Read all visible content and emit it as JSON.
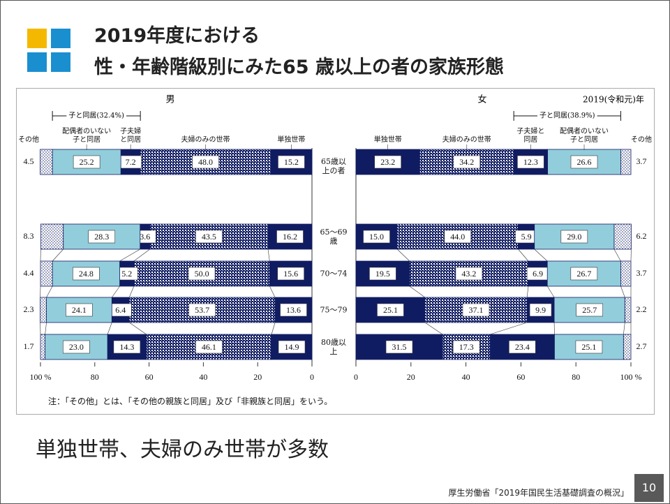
{
  "header": {
    "title_lines": [
      "2019年度における",
      "性・年齢階級別にみた65 歳以上の者の家族形態"
    ]
  },
  "chart_data": {
    "type": "bar",
    "orientation": "horizontal",
    "stacked": true,
    "year_label": "2019(令和元)年",
    "categories": [
      "65歳以上の者",
      "65〜69歳",
      "70〜74",
      "75〜79",
      "80歳以上"
    ],
    "note": "注：「その他」とは、「その他の親族と同居」及び「非親族と同居」をいう。",
    "panels": [
      {
        "title": "男",
        "xlim": [
          100,
          0
        ],
        "xticks": [
          {
            "value": 100,
            "label": "100 %"
          },
          80,
          60,
          40,
          20,
          0
        ],
        "group_annotation": {
          "text": "子と同居(32.4%)",
          "series": [
            2,
            3
          ]
        },
        "series": [
          {
            "name": "単独世帯",
            "color": "#101c62",
            "values": [
              15.2,
              16.2,
              15.6,
              13.6,
              14.9
            ],
            "value_labels": [
              "15.2",
              "16.2",
              "15.6",
              "13.6",
              "14.9"
            ]
          },
          {
            "name": "夫婦のみの世帯",
            "color": "#101c62",
            "pattern": "checker",
            "values": [
              48.0,
              43.5,
              50.0,
              53.7,
              46.1
            ],
            "value_labels": [
              "48.0",
              "43.5",
              "50.0",
              "53.7",
              "46.1"
            ]
          },
          {
            "name": "子夫婦と同居",
            "color": "#101c62",
            "values": [
              7.2,
              3.6,
              5.2,
              6.4,
              14.3
            ],
            "value_labels": [
              "7.2",
              "3.6",
              "5.2",
              "6.4",
              "14.3"
            ]
          },
          {
            "name": "配偶者のいない子と同居",
            "color": "#92cddc",
            "values": [
              25.2,
              28.3,
              24.8,
              24.1,
              23.0
            ],
            "value_labels": [
              "25.2",
              "28.3",
              "24.8",
              "24.1",
              "23.0"
            ]
          },
          {
            "name": "その他",
            "color": "#ffffff",
            "pattern": "dots",
            "label_position": "outside",
            "values": [
              4.5,
              8.3,
              4.4,
              2.3,
              1.7
            ],
            "value_labels": [
              "4.5",
              "8.3",
              "4.4",
              "2.3",
              "1.7"
            ]
          }
        ]
      },
      {
        "title": "女",
        "xlim": [
          0,
          100
        ],
        "xticks": [
          0,
          20,
          40,
          60,
          80,
          {
            "value": 100,
            "label": "100 %"
          }
        ],
        "group_annotation": {
          "text": "子と同居(38.9%)",
          "series": [
            2,
            3
          ]
        },
        "series": [
          {
            "name": "単独世帯",
            "color": "#101c62",
            "values": [
              23.2,
              15.0,
              19.5,
              25.1,
              31.5
            ],
            "value_labels": [
              "23.2",
              "15.0",
              "19.5",
              "25.1",
              "31.5"
            ]
          },
          {
            "name": "夫婦のみの世帯",
            "color": "#101c62",
            "pattern": "checker",
            "values": [
              34.2,
              44.0,
              43.2,
              37.1,
              17.3
            ],
            "value_labels": [
              "34.2",
              "44.0",
              "43.2",
              "37.1",
              "17.3"
            ]
          },
          {
            "name": "子夫婦と同居",
            "color": "#101c62",
            "values": [
              12.3,
              5.9,
              6.9,
              9.9,
              23.4
            ],
            "value_labels": [
              "12.3",
              "5.9",
              "6.9",
              "9.9",
              "23.4"
            ]
          },
          {
            "name": "配偶者のいない子と同居",
            "color": "#92cddc",
            "values": [
              26.6,
              29.0,
              26.7,
              25.7,
              25.1
            ],
            "value_labels": [
              "26.6",
              "29.0",
              "26.7",
              "25.7",
              "25.1"
            ]
          },
          {
            "name": "その他",
            "color": "#ffffff",
            "pattern": "dots",
            "label_position": "outside",
            "values": [
              3.7,
              6.2,
              3.7,
              2.2,
              2.7
            ],
            "value_labels": [
              "3.7",
              "6.2",
              "3.7",
              "2.2",
              "2.7"
            ]
          }
        ]
      }
    ]
  },
  "summary": "単独世帯、夫婦のみ世帯が多数",
  "footer": {
    "source": "厚生労働省「2019年国民生活基礎調査の概況」",
    "page_number": "10"
  }
}
